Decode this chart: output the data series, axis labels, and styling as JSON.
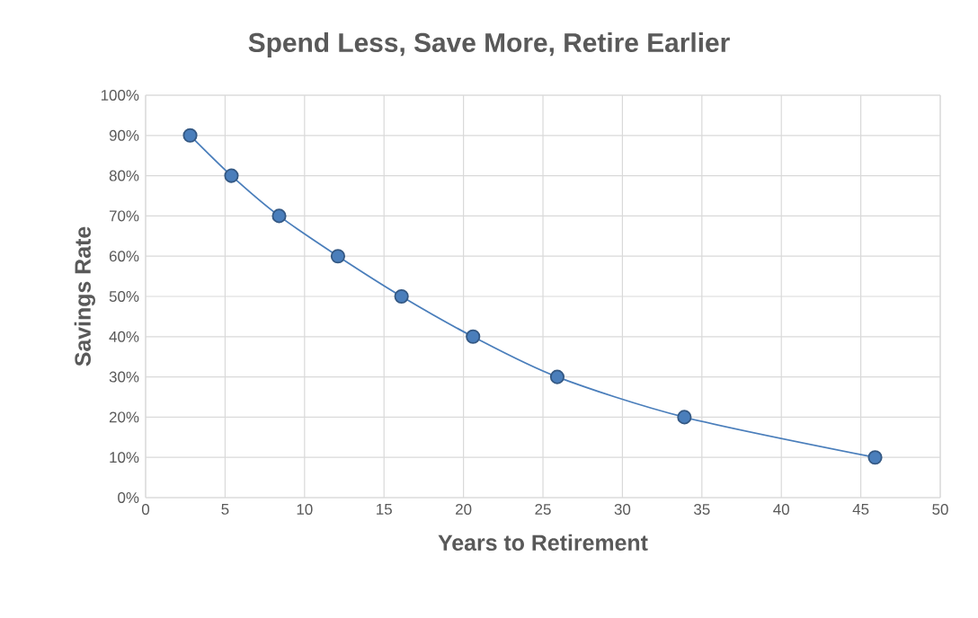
{
  "chart_data": {
    "type": "line",
    "title": "Spend Less, Save More, Retire Earlier",
    "xlabel": "Years to Retirement",
    "ylabel": "Savings Rate",
    "x": [
      2.8,
      5.4,
      8.4,
      12.1,
      16.1,
      20.6,
      25.9,
      33.9,
      45.9
    ],
    "series": [
      {
        "color": "#4a7ebb",
        "values": [
          90,
          80,
          70,
          60,
          50,
          40,
          30,
          20,
          10
        ]
      }
    ],
    "xlim": [
      0,
      50
    ],
    "xticks": [
      0,
      5,
      10,
      15,
      20,
      25,
      30,
      35,
      40,
      45,
      50
    ],
    "ylim": [
      0,
      100
    ],
    "yticks": [
      {
        "value": 0,
        "label": "0%"
      },
      {
        "value": 10,
        "label": "10%"
      },
      {
        "value": 20,
        "label": "20%"
      },
      {
        "value": 30,
        "label": "30%"
      },
      {
        "value": 40,
        "label": "40%"
      },
      {
        "value": 50,
        "label": "50%"
      },
      {
        "value": 60,
        "label": "60%"
      },
      {
        "value": 70,
        "label": "70%"
      },
      {
        "value": 80,
        "label": "80%"
      },
      {
        "value": 90,
        "label": "90%"
      },
      {
        "value": 100,
        "label": "100%"
      }
    ],
    "grid": true,
    "marker": "circle",
    "line_style": "solid"
  }
}
